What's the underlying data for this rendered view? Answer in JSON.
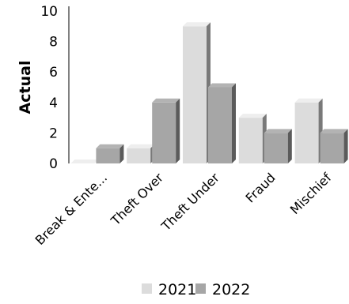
{
  "chart_data": {
    "type": "bar",
    "categories": [
      "Break & Ente...",
      "Theft Over",
      "Theft Under",
      "Fraud",
      "Mischief"
    ],
    "series": [
      {
        "name": "2021",
        "values": [
          0,
          1,
          9,
          3,
          4
        ],
        "color": "#dcdcdc"
      },
      {
        "name": "2022",
        "values": [
          1,
          4,
          5,
          2,
          2
        ],
        "color": "#a6a6a6"
      }
    ],
    "ylabel": "Actual",
    "xlabel": "",
    "ylim": [
      0,
      10
    ],
    "yticks": [
      "0",
      "2",
      "4",
      "6",
      "8",
      "10"
    ],
    "grid": false,
    "legend_position": "bottom",
    "style": "3d-bar"
  }
}
